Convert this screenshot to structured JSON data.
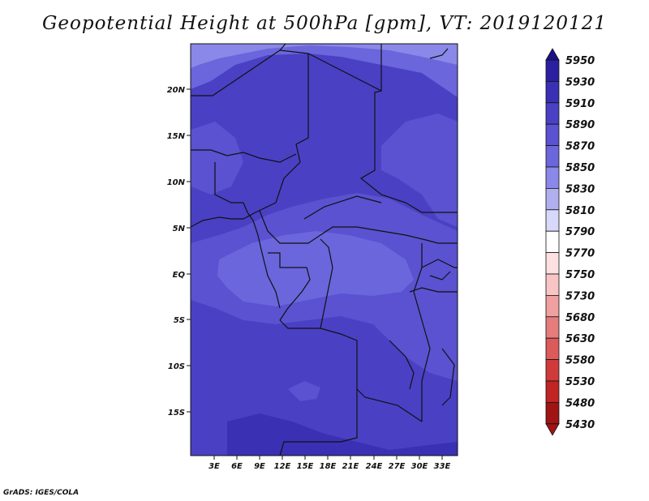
{
  "title": "Geopotential Height at 500hPa [gpm], VT: 2019120121",
  "footer": "GrADS: IGES/COLA",
  "map": {
    "lat_labels": [
      "20N",
      "15N",
      "10N",
      "5N",
      "EQ",
      "5S",
      "10S",
      "15S"
    ],
    "lon_labels": [
      "3E",
      "6E",
      "9E",
      "12E",
      "15E",
      "18E",
      "21E",
      "24E",
      "27E",
      "30E",
      "33E"
    ],
    "colorbar_levels": [
      "5950",
      "5930",
      "5910",
      "5890",
      "5870",
      "5850",
      "5830",
      "5810",
      "5790",
      "5770",
      "5750",
      "5730",
      "5680",
      "5630",
      "5580",
      "5530",
      "5480",
      "5430"
    ],
    "colorbar_colors": [
      "#1e0f8c",
      "#2a20a0",
      "#3a30b4",
      "#4a40c4",
      "#5a52d0",
      "#6b66dc",
      "#8a88e8",
      "#b0b0f0",
      "#d8d8fa",
      "#ffffff",
      "#fde0e0",
      "#f8c4c4",
      "#f0a0a0",
      "#e67c7c",
      "#dc5a5a",
      "#d03a3a",
      "#c02424",
      "#a01414"
    ],
    "region_colors": {
      "shade_5850": "#6b66dc",
      "shade_5870": "#5a52d0",
      "shade_5890": "#4a40c4",
      "shade_5910": "#3a30b4",
      "shade_5830": "#8a88e8"
    }
  }
}
